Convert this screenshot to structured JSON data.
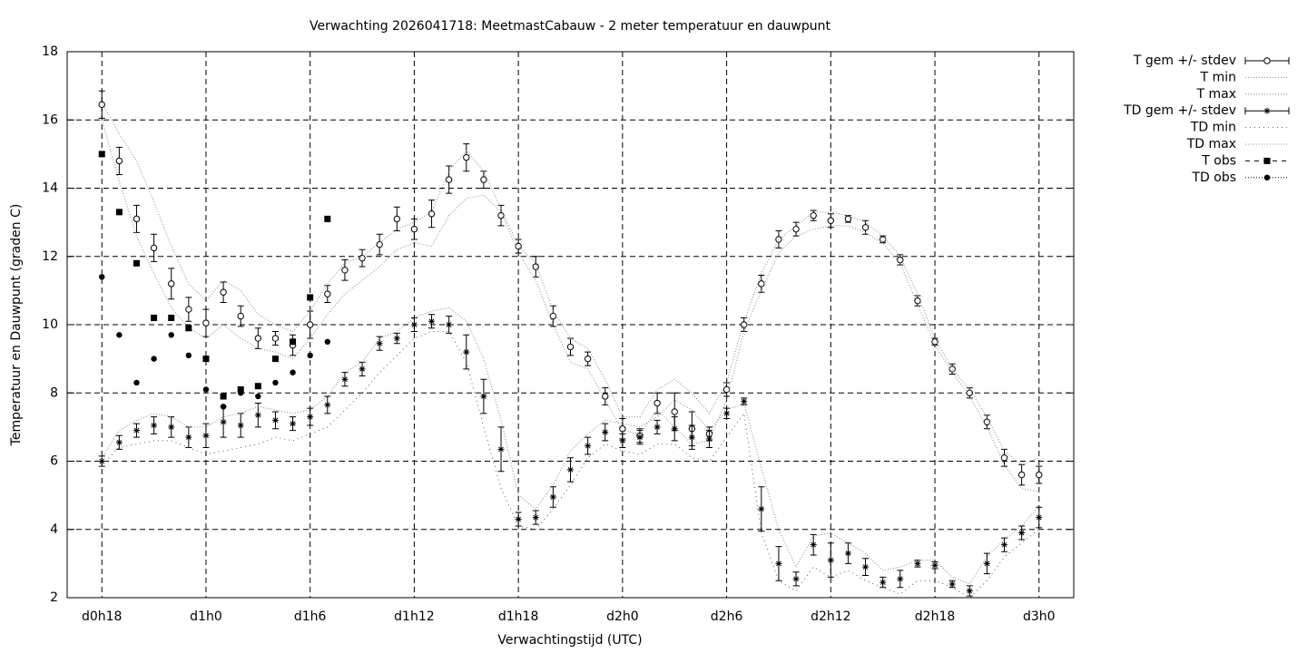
{
  "chart_data": {
    "type": "line",
    "title": "Verwachting 2026041718: MeetmastCabauw - 2 meter temperatuur en dauwpunt",
    "x_label": "Verwachtingstijd (UTC)",
    "y_label": "Temperatuur en Dauwpunt (graden C)",
    "x": [
      18,
      19,
      20,
      21,
      22,
      23,
      24,
      25,
      26,
      27,
      28,
      29,
      30,
      31,
      32,
      33,
      34,
      35,
      36,
      37,
      38,
      39,
      40,
      41,
      42,
      43,
      44,
      45,
      46,
      47,
      48,
      49,
      50,
      51,
      52,
      53,
      54,
      55,
      56,
      57,
      58,
      59,
      60,
      61,
      62,
      63,
      64,
      65,
      66,
      67,
      68,
      69,
      70,
      71,
      72
    ],
    "xlim": [
      16,
      74
    ],
    "xticks": [
      {
        "value": 18,
        "label": "d0h18"
      },
      {
        "value": 24,
        "label": "d1h0"
      },
      {
        "value": 30,
        "label": "d1h6"
      },
      {
        "value": 36,
        "label": "d1h12"
      },
      {
        "value": 42,
        "label": "d1h18"
      },
      {
        "value": 48,
        "label": "d2h0"
      },
      {
        "value": 54,
        "label": "d2h6"
      },
      {
        "value": 60,
        "label": "d2h12"
      },
      {
        "value": 66,
        "label": "d2h18"
      },
      {
        "value": 72,
        "label": "d3h0"
      }
    ],
    "ylim": [
      2,
      18
    ],
    "yticks": [
      2,
      4,
      6,
      8,
      10,
      12,
      14,
      16,
      18
    ],
    "grid": true,
    "legend": "top-right",
    "series": [
      {
        "name": "T gem +/- stdev",
        "color": "#000000",
        "style": "errorbars",
        "marker": "circle-open",
        "values": [
          16.45,
          14.8,
          13.1,
          12.25,
          11.2,
          10.45,
          10.05,
          10.95,
          10.25,
          9.6,
          9.6,
          9.4,
          10.0,
          10.9,
          11.6,
          11.95,
          12.35,
          13.1,
          12.8,
          13.25,
          14.25,
          14.9,
          14.25,
          13.2,
          12.3,
          11.7,
          10.25,
          9.35,
          9.0,
          7.9,
          6.95,
          6.75,
          7.7,
          7.45,
          6.95,
          6.8,
          8.1,
          10.0,
          11.2,
          12.5,
          12.8,
          13.2,
          13.05,
          13.1,
          12.85,
          12.5,
          11.9,
          10.7,
          9.5,
          8.7,
          8.0,
          7.15,
          6.1,
          5.6,
          5.6
        ],
        "errors": [
          0.4,
          0.4,
          0.4,
          0.4,
          0.45,
          0.35,
          0.4,
          0.3,
          0.3,
          0.3,
          0.2,
          0.3,
          0.4,
          0.25,
          0.3,
          0.25,
          0.3,
          0.35,
          0.3,
          0.4,
          0.4,
          0.4,
          0.25,
          0.3,
          0.2,
          0.3,
          0.3,
          0.25,
          0.2,
          0.25,
          0.3,
          0.2,
          0.3,
          0.55,
          0.5,
          0.2,
          0.2,
          0.2,
          0.25,
          0.25,
          0.2,
          0.15,
          0.2,
          0.1,
          0.2,
          0.1,
          0.15,
          0.15,
          0.1,
          0.15,
          0.15,
          0.2,
          0.25,
          0.3,
          0.25
        ]
      },
      {
        "name": "T min",
        "color": "#888888",
        "style": "dotted",
        "values": [
          16.0,
          14.2,
          12.6,
          11.5,
          10.5,
          9.9,
          9.6,
          10.0,
          9.6,
          9.3,
          9.2,
          9.0,
          9.6,
          10.3,
          10.9,
          11.3,
          11.7,
          12.2,
          12.4,
          12.3,
          13.2,
          13.7,
          13.8,
          13.3,
          12.1,
          11.3,
          10.0,
          8.9,
          8.7,
          7.8,
          6.9,
          6.8,
          7.5,
          7.0,
          6.5,
          6.6,
          7.8,
          9.8,
          11.0,
          12.1,
          12.6,
          12.8,
          12.9,
          12.9,
          12.7,
          12.4,
          11.8,
          10.6,
          9.4,
          8.6,
          7.9,
          7.0,
          5.9,
          5.2,
          5.1
        ]
      },
      {
        "name": "T max",
        "color": "#888888",
        "style": "dotted",
        "values": [
          16.5,
          15.6,
          14.8,
          13.6,
          12.3,
          11.2,
          10.7,
          11.3,
          11.0,
          10.3,
          10.0,
          9.8,
          10.4,
          11.2,
          11.8,
          12.0,
          12.4,
          12.8,
          13.0,
          13.3,
          14.5,
          15.1,
          14.5,
          13.4,
          12.3,
          11.8,
          10.4,
          9.6,
          9.3,
          8.4,
          7.3,
          7.3,
          8.1,
          8.4,
          8.0,
          7.4,
          8.3,
          10.1,
          11.5,
          12.5,
          12.9,
          13.3,
          13.3,
          13.2,
          13.0,
          12.6,
          12.0,
          10.9,
          9.6,
          8.7,
          8.1,
          7.3,
          6.3,
          5.9,
          6.1
        ]
      },
      {
        "name": "TD gem +/- stdev",
        "color": "#000000",
        "style": "errorbars",
        "marker": "star",
        "values": [
          6.0,
          6.55,
          6.9,
          7.05,
          7.0,
          6.7,
          6.75,
          7.15,
          7.05,
          7.35,
          7.2,
          7.1,
          7.3,
          7.65,
          8.4,
          8.7,
          9.45,
          9.6,
          10.0,
          10.1,
          10.0,
          9.2,
          7.9,
          6.35,
          4.3,
          4.35,
          4.95,
          5.75,
          6.45,
          6.85,
          6.6,
          6.7,
          7.0,
          6.95,
          6.7,
          6.65,
          7.4,
          7.75,
          4.6,
          3.0,
          2.55,
          3.55,
          3.1,
          3.3,
          2.9,
          2.45,
          2.55,
          3.0,
          2.95,
          2.4,
          2.2,
          3.0,
          3.55,
          3.9,
          4.35
        ],
        "errors": [
          0.15,
          0.2,
          0.2,
          0.25,
          0.3,
          0.3,
          0.35,
          0.45,
          0.35,
          0.35,
          0.25,
          0.2,
          0.25,
          0.25,
          0.2,
          0.2,
          0.2,
          0.15,
          0.2,
          0.2,
          0.25,
          0.5,
          0.5,
          0.65,
          0.2,
          0.2,
          0.3,
          0.35,
          0.25,
          0.25,
          0.2,
          0.2,
          0.2,
          0.35,
          0.35,
          0.25,
          0.15,
          0.1,
          0.65,
          0.5,
          0.2,
          0.3,
          0.5,
          0.3,
          0.25,
          0.15,
          0.25,
          0.1,
          0.1,
          0.1,
          0.15,
          0.3,
          0.2,
          0.2,
          0.3
        ]
      },
      {
        "name": "TD min",
        "color": "#555555",
        "style": "dotted-sparse",
        "values": [
          5.9,
          6.4,
          6.5,
          6.6,
          6.6,
          6.4,
          6.2,
          6.3,
          6.4,
          6.5,
          6.7,
          6.6,
          6.8,
          7.0,
          7.5,
          8.0,
          8.6,
          9.1,
          9.6,
          9.8,
          9.8,
          8.9,
          7.0,
          5.2,
          4.1,
          4.0,
          4.6,
          5.3,
          6.1,
          6.5,
          6.3,
          6.2,
          6.5,
          6.5,
          6.1,
          6.0,
          6.7,
          7.4,
          3.9,
          2.5,
          2.2,
          2.9,
          2.6,
          2.8,
          2.5,
          2.3,
          2.1,
          2.5,
          2.5,
          2.3,
          2.0,
          2.5,
          3.2,
          3.6,
          4.0
        ]
      },
      {
        "name": "TD max",
        "color": "#888888",
        "style": "dotted",
        "values": [
          6.1,
          6.9,
          7.2,
          7.4,
          7.3,
          7.0,
          7.0,
          7.3,
          7.4,
          7.6,
          7.5,
          7.4,
          7.5,
          7.9,
          8.6,
          8.9,
          9.6,
          9.8,
          10.2,
          10.4,
          10.5,
          10.1,
          9.0,
          7.2,
          5.0,
          4.6,
          5.3,
          6.3,
          6.8,
          7.2,
          7.1,
          7.0,
          7.3,
          7.8,
          7.5,
          6.9,
          7.5,
          7.7,
          5.8,
          4.0,
          2.9,
          3.8,
          3.9,
          3.6,
          3.3,
          2.8,
          2.9,
          3.1,
          3.1,
          2.6,
          2.4,
          3.2,
          3.7,
          4.1,
          4.7
        ]
      },
      {
        "name": "T obs",
        "color": "#000000",
        "style": "points",
        "marker": "square",
        "x": [
          18,
          19,
          20,
          21,
          22,
          23,
          24,
          25,
          26,
          27,
          28,
          29,
          30,
          31
        ],
        "values": [
          15.0,
          13.3,
          11.8,
          10.2,
          10.2,
          9.9,
          9.0,
          7.9,
          8.1,
          8.2,
          9.0,
          9.5,
          10.8,
          13.1
        ]
      },
      {
        "name": "TD obs",
        "color": "#000000",
        "style": "points",
        "marker": "circle-filled",
        "x": [
          18,
          19,
          20,
          21,
          22,
          23,
          24,
          25,
          26,
          27,
          28,
          29,
          30,
          31
        ],
        "values": [
          11.4,
          9.7,
          8.3,
          9.0,
          9.7,
          9.1,
          8.1,
          7.6,
          8.0,
          7.9,
          8.3,
          8.6,
          9.1,
          9.5
        ]
      }
    ]
  }
}
